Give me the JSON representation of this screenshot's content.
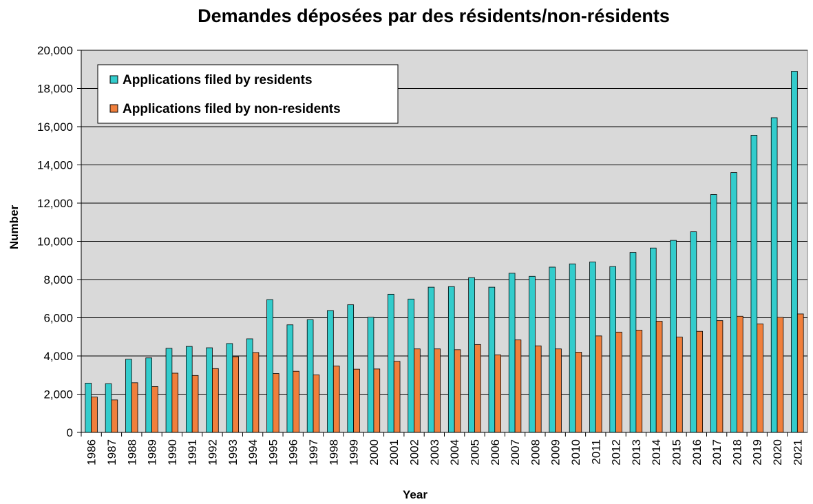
{
  "chart_data": {
    "type": "bar",
    "title": "Demandes déposées par des résidents/non-résidents",
    "xlabel": "Year",
    "ylabel": "Number",
    "categories": [
      "1986",
      "1987",
      "1988",
      "1989",
      "1990",
      "1991",
      "1992",
      "1993",
      "1994",
      "1995",
      "1996",
      "1997",
      "1998",
      "1999",
      "2000",
      "2001",
      "2002",
      "2003",
      "2004",
      "2005",
      "2006",
      "2007",
      "2008",
      "2009",
      "2010",
      "2011",
      "2012",
      "2013",
      "2014",
      "2015",
      "2016",
      "2017",
      "2018",
      "2019",
      "2020",
      "2021"
    ],
    "series": [
      {
        "name": "Applications filed by residents",
        "color": "#33cccc",
        "values": [
          2580,
          2550,
          3830,
          3900,
          4400,
          4500,
          4430,
          4650,
          4900,
          6950,
          5630,
          5900,
          6380,
          6680,
          6030,
          7230,
          6980,
          7600,
          7630,
          8100,
          7600,
          8330,
          8170,
          8650,
          8820,
          8920,
          8680,
          9420,
          9650,
          10050,
          10500,
          12450,
          13600,
          15550,
          16470,
          18900
        ]
      },
      {
        "name": "Applications filed by non-residents",
        "color": "#f07f3c",
        "values": [
          1850,
          1700,
          2600,
          2400,
          3100,
          2980,
          3340,
          3960,
          4180,
          3080,
          3200,
          3010,
          3470,
          3310,
          3320,
          3720,
          4370,
          4370,
          4330,
          4600,
          4060,
          4840,
          4530,
          4370,
          4200,
          5050,
          5250,
          5350,
          5820,
          4990,
          5290,
          5850,
          6080,
          5680,
          6020,
          6200
        ]
      }
    ],
    "ylim": [
      0,
      20000
    ],
    "yticks": [
      0,
      {
        "value": 2000,
        "label": "2,000"
      },
      {
        "value": 4000,
        "label": "4,000"
      },
      {
        "value": 6000,
        "label": "6,000"
      },
      {
        "value": 8000,
        "label": "8,000"
      },
      {
        "value": 10000,
        "label": "10,000"
      },
      {
        "value": 12000,
        "label": "12,000"
      },
      {
        "value": 14000,
        "label": "14,000"
      },
      {
        "value": 16000,
        "label": "16,000"
      },
      {
        "value": 18000,
        "label": "18,000"
      },
      {
        "value": 20000,
        "label": "20,000"
      }
    ],
    "grid": true,
    "legend": "upper left"
  }
}
